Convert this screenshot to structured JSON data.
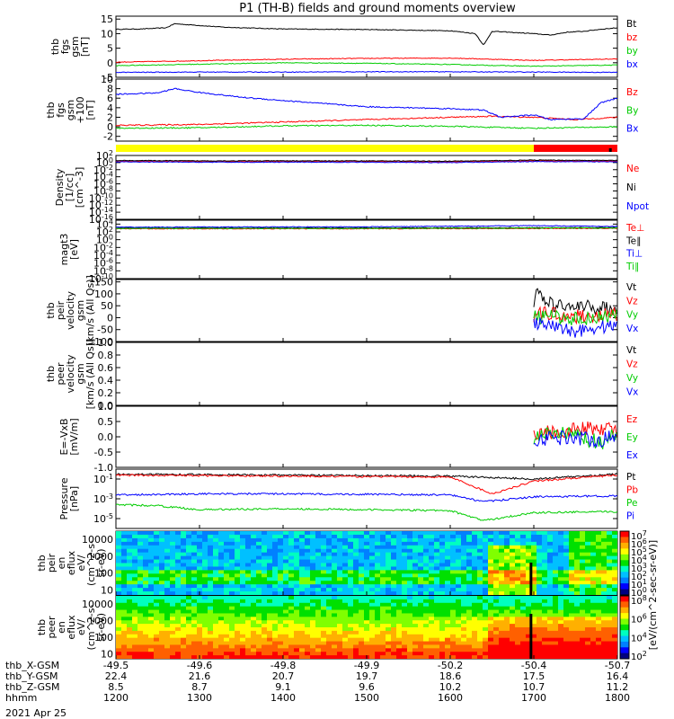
{
  "title": "P1 (TH-B) fields and ground moments overview",
  "date_label": "2021 Apr 25",
  "colors": {
    "black": "#000000",
    "red": "#ff0000",
    "green": "#00cc00",
    "blue": "#0000ff",
    "yellow": "#ffff00"
  },
  "chart_data": [
    {
      "id": "fgs",
      "type": "line",
      "ylabel": [
        "thb",
        "fgs",
        "gsm",
        "[nT]"
      ],
      "ylim": [
        -5,
        16
      ],
      "yticks": [
        "-5",
        "0",
        "5",
        "10",
        "15"
      ],
      "legend": [
        {
          "name": "Bt",
          "color": "black"
        },
        {
          "name": "bz",
          "color": "red"
        },
        {
          "name": "by",
          "color": "green"
        },
        {
          "name": "bx",
          "color": "blue"
        }
      ],
      "series": [
        {
          "name": "Bt",
          "color": "black",
          "x": [
            1200,
            1230,
            1260,
            1270,
            1300,
            1330,
            1400,
            1500,
            1600,
            1630,
            1640,
            1650,
            1700,
            1720,
            1740,
            1760,
            1780,
            1800
          ],
          "y": [
            11.5,
            11.6,
            12,
            13.4,
            12.8,
            12.2,
            11.6,
            11.4,
            11,
            10,
            6,
            10.8,
            10,
            9.5,
            10.5,
            10.8,
            11.5,
            12
          ]
        },
        {
          "name": "bz",
          "color": "red",
          "x": [
            1200,
            1300,
            1400,
            1500,
            1600,
            1700,
            1800
          ],
          "y": [
            0.2,
            0.7,
            1.2,
            1.5,
            1.6,
            0.8,
            1.3
          ]
        },
        {
          "name": "by",
          "color": "green",
          "x": [
            1200,
            1300,
            1400,
            1500,
            1600,
            1700,
            1800
          ],
          "y": [
            -1,
            -0.5,
            0,
            -0.2,
            -0.6,
            -1.2,
            -0.8
          ]
        },
        {
          "name": "bx",
          "color": "blue",
          "x": [
            1200,
            1300,
            1400,
            1500,
            1600,
            1700,
            1800
          ],
          "y": [
            -3.3,
            -3.2,
            -3.2,
            -3.1,
            -3.1,
            -3.2,
            -3.3
          ]
        }
      ]
    },
    {
      "id": "fgs_ssl",
      "type": "line",
      "ylabel": [
        "thb",
        "fgs",
        "gsm",
        "+100",
        "[nT]"
      ],
      "ylim": [
        -3,
        10
      ],
      "yticks": [
        "-2",
        "0",
        "2",
        "4",
        "6",
        "8",
        "10"
      ],
      "legend": [
        {
          "name": "Bz",
          "color": "red"
        },
        {
          "name": "By",
          "color": "green"
        },
        {
          "name": "Bx",
          "color": "blue"
        }
      ],
      "series": [
        {
          "name": "Bz",
          "color": "red",
          "x": [
            1200,
            1300,
            1400,
            1500,
            1600,
            1650,
            1700,
            1750,
            1800
          ],
          "y": [
            0.3,
            0.5,
            1,
            1.5,
            2,
            2.2,
            2,
            1.5,
            2
          ]
        },
        {
          "name": "By",
          "color": "green",
          "x": [
            1200,
            1300,
            1400,
            1500,
            1600,
            1700,
            1800
          ],
          "y": [
            -0.3,
            -0.2,
            0.2,
            0.3,
            0.1,
            -0.3,
            0
          ]
        },
        {
          "name": "Bx",
          "color": "blue",
          "x": [
            1200,
            1250,
            1270,
            1300,
            1350,
            1400,
            1500,
            1600,
            1640,
            1660,
            1700,
            1720,
            1760,
            1780,
            1800
          ],
          "y": [
            6.8,
            7.1,
            8,
            7.2,
            6.2,
            5.5,
            4.2,
            3.8,
            3.5,
            2,
            2.5,
            1.5,
            1.7,
            5,
            6
          ]
        }
      ]
    },
    {
      "id": "quality_bar",
      "type": "bar",
      "segments": [
        {
          "from": 1200,
          "to": 1700,
          "color": "yellow"
        },
        {
          "from": 1700,
          "to": 1800,
          "color": "red"
        }
      ]
    },
    {
      "id": "density",
      "type": "line",
      "ylabel": [
        "Density",
        "[1/cc]",
        "[cm^-3]"
      ],
      "scale": "log",
      "ylim": [
        -16,
        2
      ],
      "yticks": [
        "10^2",
        "10^0",
        "10^-2",
        "10^-4",
        "10^-6",
        "10^-8",
        "10^-10",
        "10^-12",
        "10^-14",
        "10^-16"
      ],
      "legend": [
        {
          "name": "Ne",
          "color": "red"
        },
        {
          "name": "Ni",
          "color": "black"
        },
        {
          "name": "Npot",
          "color": "blue"
        }
      ],
      "series": [
        {
          "name": "Ne",
          "color": "red",
          "x": [
            1200,
            1300,
            1400,
            1500,
            1600,
            1700,
            1800
          ],
          "y": [
            0.4,
            0.3,
            0.3,
            0.3,
            0.2,
            0.5,
            0.4
          ]
        },
        {
          "name": "Ni",
          "color": "black",
          "x": [
            1200,
            1300,
            1400,
            1500,
            1600,
            1700,
            1800
          ],
          "y": [
            0.6,
            0.5,
            0.5,
            0.5,
            0.4,
            0.7,
            0.6
          ]
        },
        {
          "name": "Npot",
          "color": "blue",
          "x": [
            1200,
            1300,
            1400,
            1500,
            1600,
            1700,
            1800
          ],
          "y": [
            0.2,
            0.1,
            0.1,
            0.1,
            0,
            0.3,
            0.2
          ]
        }
      ]
    },
    {
      "id": "temperature",
      "type": "line",
      "ylabel": [
        "magt3",
        "[eV]"
      ],
      "scale": "log",
      "ylim": [
        -10,
        5
      ],
      "yticks": [
        "10^4",
        "10^2",
        "10^0",
        "10^-2",
        "10^-4",
        "10^-6",
        "10^-8",
        "10^-10"
      ],
      "legend": [
        {
          "name": "Te⊥",
          "color": "red"
        },
        {
          "name": "Te∥",
          "color": "black"
        },
        {
          "name": "Ti⊥",
          "color": "blue"
        },
        {
          "name": "Ti∥",
          "color": "green"
        }
      ],
      "series": [
        {
          "name": "Te⊥",
          "color": "red",
          "x": [
            1200,
            1500,
            1800
          ],
          "y": [
            2.8,
            2.8,
            2.9
          ]
        },
        {
          "name": "Te∥",
          "color": "black",
          "x": [
            1200,
            1500,
            1800
          ],
          "y": [
            3.0,
            3.0,
            3.1
          ]
        },
        {
          "name": "Ti⊥",
          "color": "blue",
          "x": [
            1200,
            1500,
            1700,
            1800
          ],
          "y": [
            3.2,
            3.3,
            3.6,
            3.4
          ]
        },
        {
          "name": "Ti∥",
          "color": "green",
          "x": [
            1200,
            1500,
            1800
          ],
          "y": [
            2.9,
            2.9,
            3.0
          ]
        }
      ]
    },
    {
      "id": "peir_velocity",
      "type": "line",
      "ylabel": [
        "thb",
        "peir",
        "velocity",
        "gsm",
        "[km/s (All Qs)]"
      ],
      "ylim": [
        -100,
        160
      ],
      "yticks": [
        "-100",
        "-50",
        "0",
        "50",
        "100",
        "150"
      ],
      "legend": [
        {
          "name": "Vt",
          "color": "black"
        },
        {
          "name": "Vz",
          "color": "red"
        },
        {
          "name": "Vy",
          "color": "green"
        },
        {
          "name": "Vx",
          "color": "blue"
        }
      ],
      "series": [
        {
          "name": "Vt",
          "color": "black",
          "x": [
            1700,
            1705,
            1720,
            1750,
            1800
          ],
          "y": [
            60,
            110,
            55,
            45,
            40
          ]
        },
        {
          "name": "Vz",
          "color": "red",
          "x": [
            1700,
            1720,
            1750,
            1800
          ],
          "y": [
            10,
            20,
            5,
            15
          ]
        },
        {
          "name": "Vy",
          "color": "green",
          "x": [
            1700,
            1720,
            1750,
            1800
          ],
          "y": [
            0,
            5,
            -5,
            10
          ]
        },
        {
          "name": "Vx",
          "color": "blue",
          "x": [
            1700,
            1720,
            1750,
            1800
          ],
          "y": [
            -20,
            -40,
            -55,
            -30
          ]
        }
      ]
    },
    {
      "id": "peer_velocity",
      "type": "line",
      "ylabel": [
        "thb",
        "peer",
        "velocity",
        "gsm",
        "[km/s (All Qs)]"
      ],
      "ylim": [
        0,
        1
      ],
      "yticks": [
        "0.0",
        "0.2",
        "0.4",
        "0.6",
        "0.8",
        "1.0"
      ],
      "legend": [
        {
          "name": "Vt",
          "color": "black"
        },
        {
          "name": "Vz",
          "color": "red"
        },
        {
          "name": "Vy",
          "color": "green"
        },
        {
          "name": "Vx",
          "color": "blue"
        }
      ],
      "series": []
    },
    {
      "id": "efield",
      "type": "line",
      "ylabel": [
        "E=-VxB",
        "[mV/m]"
      ],
      "ylim": [
        -1,
        1
      ],
      "yticks": [
        "-1.0",
        "-0.5",
        "0.0",
        "0.5",
        "1.0"
      ],
      "legend": [
        {
          "name": "Ez",
          "color": "red"
        },
        {
          "name": "Ey",
          "color": "green"
        },
        {
          "name": "Ex",
          "color": "blue"
        }
      ],
      "series": [
        {
          "name": "Ez",
          "color": "red",
          "x": [
            1700,
            1740,
            1780,
            1800
          ],
          "y": [
            0.1,
            0.2,
            0.3,
            0.2
          ]
        },
        {
          "name": "Ey",
          "color": "green",
          "x": [
            1700,
            1740,
            1780,
            1800
          ],
          "y": [
            0,
            0.1,
            -0.2,
            0.1
          ]
        },
        {
          "name": "Ex",
          "color": "blue",
          "x": [
            1700,
            1740,
            1780,
            1800
          ],
          "y": [
            -0.1,
            0,
            -0.1,
            0
          ]
        }
      ]
    },
    {
      "id": "pressure",
      "type": "line",
      "ylabel": [
        "Pressure",
        "[nPa]"
      ],
      "scale": "log",
      "ylim": [
        -6,
        0
      ],
      "yticks": [
        "10^-1",
        "10^-3",
        "10^-5"
      ],
      "legend": [
        {
          "name": "Pt",
          "color": "black"
        },
        {
          "name": "Pb",
          "color": "red"
        },
        {
          "name": "Pe",
          "color": "green"
        },
        {
          "name": "Pi",
          "color": "blue"
        }
      ],
      "series": [
        {
          "name": "Pt",
          "color": "black",
          "x": [
            1200,
            1400,
            1600,
            1700,
            1800
          ],
          "y": [
            -0.5,
            -0.6,
            -0.7,
            -1,
            -0.5
          ]
        },
        {
          "name": "Pb",
          "color": "red",
          "x": [
            1200,
            1400,
            1600,
            1650,
            1700,
            1800
          ],
          "y": [
            -0.6,
            -0.7,
            -0.8,
            -2.5,
            -1.2,
            -0.6
          ]
        },
        {
          "name": "Pe",
          "color": "green",
          "x": [
            1200,
            1250,
            1300,
            1400,
            1600,
            1640,
            1700,
            1800
          ],
          "y": [
            -3.6,
            -3.7,
            -4.1,
            -4,
            -4.2,
            -5.2,
            -4.4,
            -4.3
          ]
        },
        {
          "name": "Pi",
          "color": "blue",
          "x": [
            1200,
            1300,
            1400,
            1600,
            1640,
            1700,
            1800
          ],
          "y": [
            -2.6,
            -2.5,
            -2.5,
            -2.6,
            -3.3,
            -2.8,
            -2.7
          ]
        }
      ]
    },
    {
      "id": "peir_spec",
      "type": "heatmap",
      "ylabel": [
        "thb",
        "peir",
        "en",
        "eflux",
        "eV/",
        "(cm^2-s-",
        "sr-eV)"
      ],
      "scale": "log",
      "ylim": [
        5,
        30000
      ],
      "yticks": [
        "10000",
        "1000",
        "100",
        "10"
      ],
      "colorbar": {
        "ticks": [
          "10^7",
          "10^6",
          "10^5",
          "10^4",
          "10^3",
          "10^2",
          "10^1",
          "10^0"
        ],
        "label": "[eV/(cm^2-sec-sr-eV)] (All Qs)]"
      }
    },
    {
      "id": "peer_spec",
      "type": "heatmap",
      "ylabel": [
        "thb",
        "peer",
        "en",
        "eflux",
        "eV/",
        "(cm^2-s-",
        "sr-eV)"
      ],
      "scale": "log",
      "ylim": [
        5,
        30000
      ],
      "yticks": [
        "10000",
        "1000",
        "100",
        "10"
      ],
      "colorbar": {
        "ticks": [
          "10^8",
          "10^6",
          "10^4",
          "10^2"
        ],
        "label": "[eV/(cm^2-sec-sr-eV)]"
      }
    }
  ],
  "ephemeris": {
    "rows": [
      {
        "label": "thb_X-GSM",
        "values": [
          "-49.5",
          "-49.6",
          "-49.8",
          "-49.9",
          "-50.2",
          "-50.4",
          "-50.7"
        ]
      },
      {
        "label": "thb_Y-GSM",
        "values": [
          "22.4",
          "21.6",
          "20.7",
          "19.7",
          "18.6",
          "17.5",
          "16.4"
        ]
      },
      {
        "label": "thb_Z-GSM",
        "values": [
          "8.5",
          "8.7",
          "9.1",
          "9.6",
          "10.2",
          "10.7",
          "11.2"
        ]
      },
      {
        "label": "hhmm",
        "values": [
          "1200",
          "1300",
          "1400",
          "1500",
          "1600",
          "1700",
          "1800"
        ]
      }
    ]
  }
}
